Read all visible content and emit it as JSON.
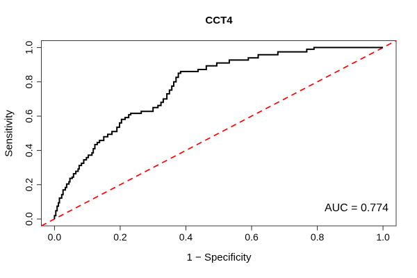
{
  "title": "CCT4",
  "axes": {
    "x": {
      "label": "1 − Specificity",
      "tick_labels": [
        "0.0",
        "0.2",
        "0.4",
        "0.6",
        "0.8",
        "1.0"
      ],
      "tick_values": [
        0,
        0.2,
        0.4,
        0.6,
        0.8,
        1.0
      ],
      "range": [
        -0.04,
        1.04
      ]
    },
    "y": {
      "label": "Sensitivity",
      "tick_labels": [
        "0.0",
        "0.2",
        "0.4",
        "0.6",
        "0.8",
        "1.0"
      ],
      "tick_values": [
        0,
        0.2,
        0.4,
        0.6,
        0.8,
        1.0
      ],
      "range": [
        -0.04,
        1.04
      ]
    }
  },
  "annotation": {
    "auc_label": "AUC = 0.774",
    "auc_value": 0.774
  },
  "colors": {
    "roc_curve": "#000000",
    "reference_line": "#ff0000",
    "axis_box": "#3d3d3d",
    "tick": "#2a2a2a",
    "text": "#000000",
    "background": "#ffffff"
  },
  "chart_data": {
    "type": "line",
    "subtype": "roc-step-curve",
    "title": "CCT4",
    "xlabel": "1 − Specificity",
    "ylabel": "Sensitivity",
    "xlim": [
      -0.04,
      1.04
    ],
    "ylim": [
      -0.04,
      1.04
    ],
    "grid": false,
    "legend_position": null,
    "auc": 0.774,
    "series": [
      {
        "name": "ROC curve CCT4",
        "style": "step",
        "color": "#000000",
        "line_width": 2,
        "points": [
          [
            0.0,
            0.0
          ],
          [
            0.0,
            0.02
          ],
          [
            0.004,
            0.048
          ],
          [
            0.008,
            0.075
          ],
          [
            0.012,
            0.095
          ],
          [
            0.015,
            0.122
          ],
          [
            0.022,
            0.142
          ],
          [
            0.026,
            0.17
          ],
          [
            0.033,
            0.184
          ],
          [
            0.037,
            0.204
          ],
          [
            0.044,
            0.217
          ],
          [
            0.047,
            0.237
          ],
          [
            0.054,
            0.244
          ],
          [
            0.058,
            0.264
          ],
          [
            0.065,
            0.278
          ],
          [
            0.072,
            0.292
          ],
          [
            0.075,
            0.312
          ],
          [
            0.082,
            0.325
          ],
          [
            0.089,
            0.345
          ],
          [
            0.097,
            0.358
          ],
          [
            0.103,
            0.372
          ],
          [
            0.114,
            0.386
          ],
          [
            0.118,
            0.41
          ],
          [
            0.123,
            0.434
          ],
          [
            0.13,
            0.446
          ],
          [
            0.137,
            0.458
          ],
          [
            0.15,
            0.48
          ],
          [
            0.162,
            0.494
          ],
          [
            0.175,
            0.51
          ],
          [
            0.19,
            0.535
          ],
          [
            0.198,
            0.56
          ],
          [
            0.204,
            0.581
          ],
          [
            0.215,
            0.592
          ],
          [
            0.226,
            0.608
          ],
          [
            0.232,
            0.616
          ],
          [
            0.264,
            0.628
          ],
          [
            0.3,
            0.65
          ],
          [
            0.315,
            0.662
          ],
          [
            0.324,
            0.68
          ],
          [
            0.331,
            0.7
          ],
          [
            0.342,
            0.73
          ],
          [
            0.35,
            0.752
          ],
          [
            0.357,
            0.775
          ],
          [
            0.363,
            0.8
          ],
          [
            0.37,
            0.826
          ],
          [
            0.377,
            0.85
          ],
          [
            0.384,
            0.86
          ],
          [
            0.437,
            0.872
          ],
          [
            0.462,
            0.893
          ],
          [
            0.494,
            0.91
          ],
          [
            0.532,
            0.927
          ],
          [
            0.59,
            0.94
          ],
          [
            0.62,
            0.958
          ],
          [
            0.68,
            0.975
          ],
          [
            0.768,
            0.99
          ],
          [
            0.79,
            1.0
          ],
          [
            1.0,
            1.0
          ]
        ]
      },
      {
        "name": "chance reference line",
        "style": "dashed-straight",
        "color": "#ff0000",
        "line_width": 1.7,
        "points": [
          [
            -0.04,
            -0.04
          ],
          [
            1.04,
            1.04
          ]
        ]
      }
    ]
  }
}
